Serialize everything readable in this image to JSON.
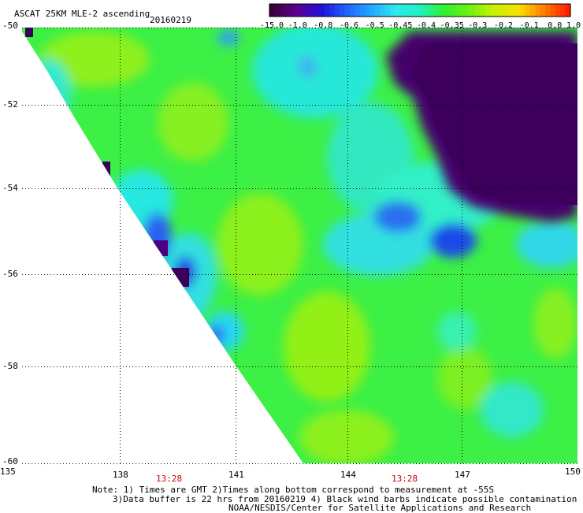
{
  "header": {
    "title": "ASCAT 25KM MLE-2 ascending",
    "date": "20160219"
  },
  "colorbar": {
    "labels": [
      "-15.0",
      "-1.0",
      "-0.8",
      "-0.6",
      "-0.5",
      "-0.45",
      "-0.4",
      "-0.35",
      "-0.3",
      "-0.2",
      "-0.1",
      "0.0",
      "1.0"
    ],
    "colors": [
      "#3a003a",
      "#5a0090",
      "#2010d8",
      "#2060ff",
      "#20a8ff",
      "#30e8f0",
      "#20f0c0",
      "#30f030",
      "#70f010",
      "#c8f000",
      "#f8e000",
      "#ff8000",
      "#ff2000"
    ]
  },
  "map": {
    "lat_labels": [
      "-50",
      "-52",
      "-54",
      "-56",
      "-58",
      "-60"
    ],
    "lon_labels": [
      "135",
      "138",
      "141",
      "144",
      "147",
      "150"
    ],
    "time_labels": [
      "13:28",
      "13:28"
    ]
  },
  "footer": {
    "line1": "Note: 1) Times are GMT 2)Times along bottom correspond to measurement at -55S",
    "line2": "3)Data buffer is 22 hrs from 20160219 4) Black wind barbs indicate possible contamination",
    "line3": "NOAA/NESDIS/Center for Satellite Applications and Research"
  }
}
